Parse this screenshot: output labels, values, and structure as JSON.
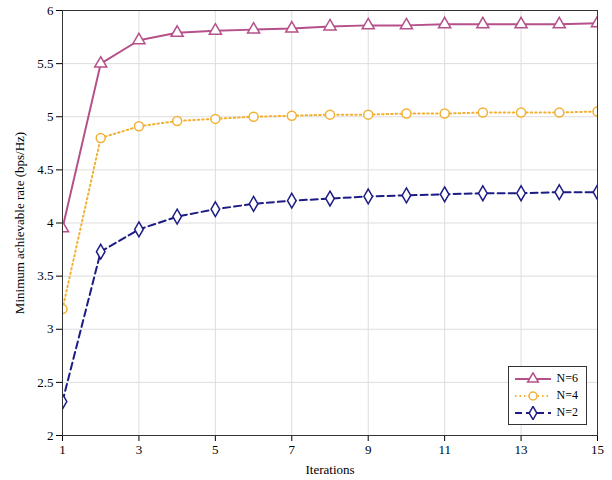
{
  "chart_data": {
    "type": "line",
    "xlabel": "Iterations",
    "ylabel": "Minimum achievable rate (bps/Hz)",
    "x": [
      1,
      2,
      3,
      4,
      5,
      6,
      7,
      8,
      9,
      10,
      11,
      12,
      13,
      14,
      15
    ],
    "xlim": [
      1,
      15
    ],
    "xticks": [
      1,
      3,
      5,
      7,
      9,
      11,
      13,
      15
    ],
    "ylim": [
      2,
      6
    ],
    "yticks": [
      2,
      2.5,
      3,
      3.5,
      4,
      4.5,
      5,
      5.5,
      6
    ],
    "grid": true,
    "legend": "bottom-right",
    "series": [
      {
        "name": "N=6",
        "color": "#b5508a",
        "marker": "triangle",
        "line_style": "solid",
        "values": [
          3.95,
          5.5,
          5.72,
          5.79,
          5.81,
          5.82,
          5.83,
          5.85,
          5.86,
          5.86,
          5.87,
          5.87,
          5.87,
          5.87,
          5.88
        ]
      },
      {
        "name": "N=4",
        "color": "#f2b134",
        "marker": "circle",
        "line_style": "dotted",
        "values": [
          3.19,
          4.8,
          4.91,
          4.96,
          4.98,
          5.0,
          5.01,
          5.02,
          5.02,
          5.03,
          5.03,
          5.04,
          5.04,
          5.04,
          5.05
        ]
      },
      {
        "name": "N=2",
        "color": "#1c1c84",
        "marker": "diamond",
        "line_style": "dashed",
        "values": [
          2.32,
          3.73,
          3.94,
          4.06,
          4.13,
          4.18,
          4.21,
          4.23,
          4.25,
          4.26,
          4.27,
          4.28,
          4.28,
          4.29,
          4.29
        ]
      }
    ]
  }
}
